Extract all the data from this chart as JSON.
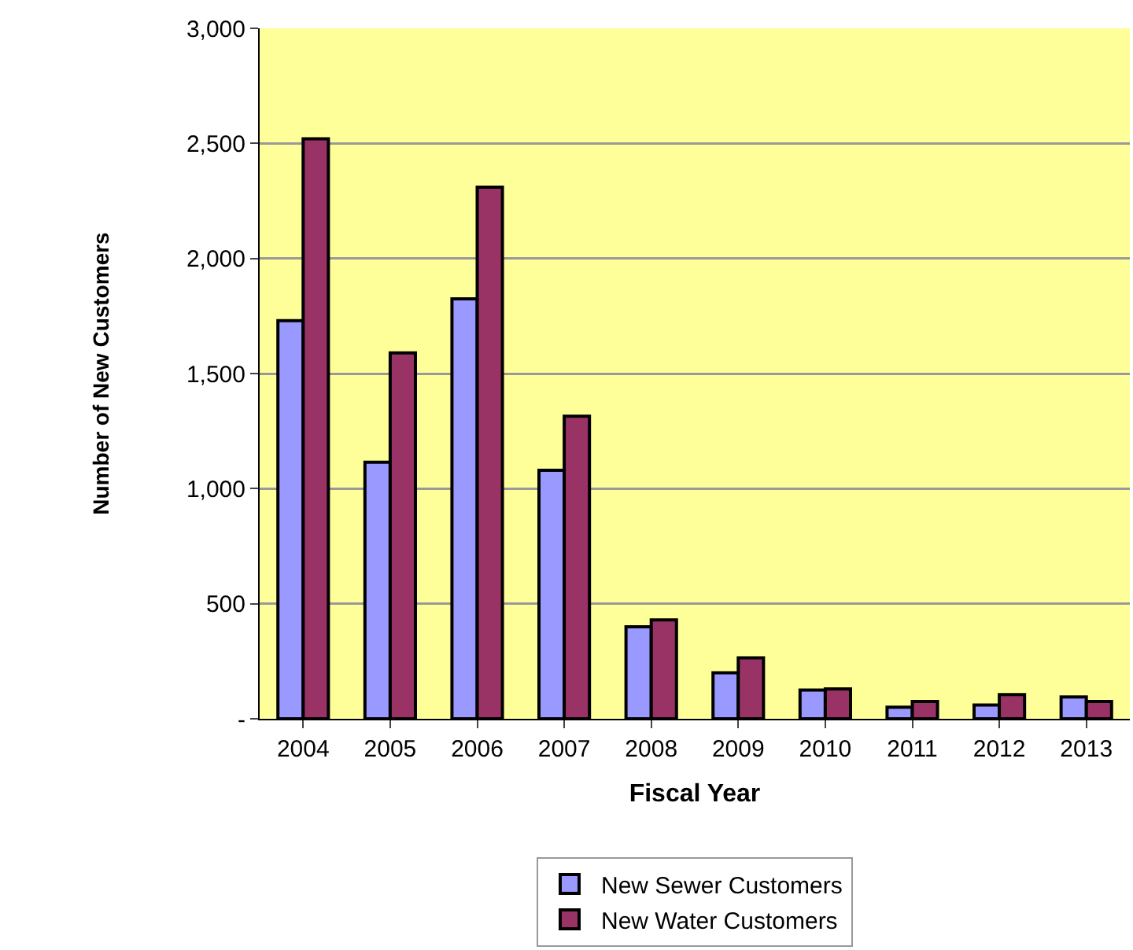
{
  "chart_data": {
    "type": "bar",
    "xlabel": "Fiscal Year",
    "ylabel": "Number of New Customers",
    "categories": [
      "2004",
      "2005",
      "2006",
      "2007",
      "2008",
      "2009",
      "2010",
      "2011",
      "2012",
      "2013"
    ],
    "series": [
      {
        "name": "New Sewer Customers",
        "color": "#9999ff",
        "values": [
          1730,
          1115,
          1825,
          1080,
          400,
          200,
          125,
          50,
          60,
          95
        ]
      },
      {
        "name": "New Water Customers",
        "color": "#993366",
        "values": [
          2520,
          1590,
          2310,
          1315,
          430,
          265,
          130,
          75,
          105,
          75
        ]
      }
    ],
    "ylim": [
      0,
      3000
    ],
    "yticks": [
      {
        "value": 0,
        "label": "-"
      },
      {
        "value": 500,
        "label": "500"
      },
      {
        "value": 1000,
        "label": "1,000"
      },
      {
        "value": 1500,
        "label": "1,500"
      },
      {
        "value": 2000,
        "label": "2,000"
      },
      {
        "value": 2500,
        "label": "2,500"
      },
      {
        "value": 3000,
        "label": "3,000"
      }
    ],
    "grid": "y",
    "legend": "bottom"
  }
}
